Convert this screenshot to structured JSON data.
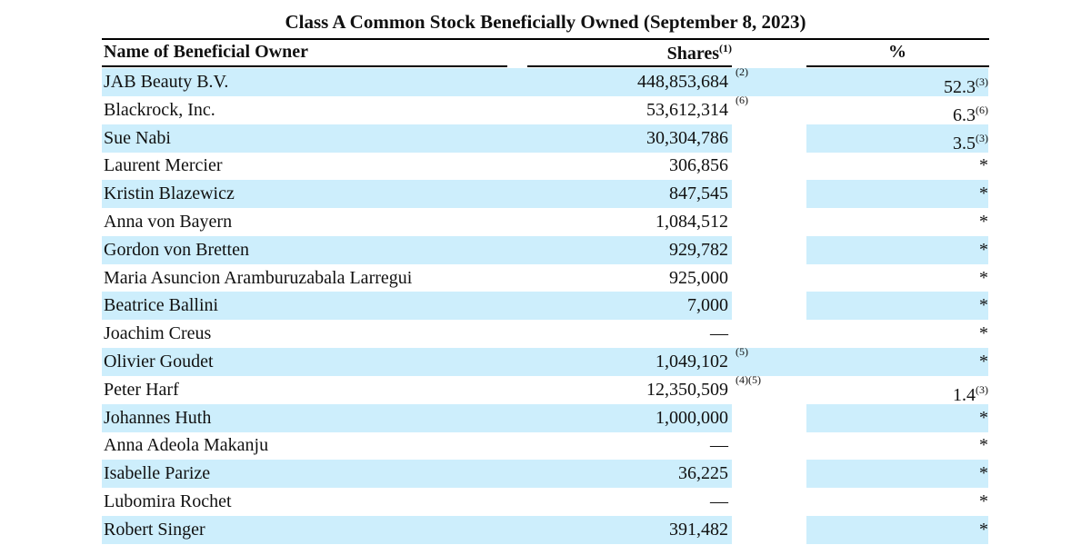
{
  "title": "Class A Common Stock Beneficially Owned (September 8, 2023)",
  "header": {
    "name": "Name of Beneficial Owner",
    "shares": "Shares",
    "shares_note": "(1)",
    "percent": "%"
  },
  "table": {
    "rows": [
      {
        "name": "JAB Beauty B.V.",
        "shares": "448,853,684",
        "shares_note": "(2)",
        "percent": "52.3",
        "percent_note": "(3)"
      },
      {
        "name": "Blackrock, Inc.",
        "shares": "53,612,314",
        "shares_note": "(6)",
        "percent": "6.3",
        "percent_note": "(6)"
      },
      {
        "name": "Sue Nabi",
        "shares": "30,304,786",
        "percent": "3.5",
        "percent_note": "(3)"
      },
      {
        "name": "Laurent Mercier",
        "shares": "306,856",
        "percent": "*"
      },
      {
        "name": "Kristin Blazewicz",
        "shares": "847,545",
        "percent": "*"
      },
      {
        "name": "Anna von Bayern",
        "shares": "1,084,512",
        "percent": "*"
      },
      {
        "name": "Gordon von Bretten",
        "shares": "929,782",
        "percent": "*"
      },
      {
        "name": "Maria Asuncion Aramburuzabala Larregui",
        "shares": "925,000",
        "percent": "*"
      },
      {
        "name": "Beatrice Ballini",
        "shares": "7,000",
        "percent": "*"
      },
      {
        "name": "Joachim Creus",
        "shares": "—",
        "percent": "*"
      },
      {
        "name": "Olivier Goudet",
        "shares": "1,049,102",
        "shares_note": "(5)",
        "percent": "*"
      },
      {
        "name": "Peter Harf",
        "shares": "12,350,509",
        "shares_note": "(4)(5)",
        "percent": "1.4",
        "percent_note": "(3)"
      },
      {
        "name": "Johannes Huth",
        "shares": "1,000,000",
        "percent": "*"
      },
      {
        "name": "Anna Adeola Makanju",
        "shares": "—",
        "percent": "*"
      },
      {
        "name": "Isabelle Parize",
        "shares": "36,225",
        "percent": "*"
      },
      {
        "name": "Lubomira Rochet",
        "shares": "—",
        "percent": "*"
      },
      {
        "name": "Robert Singer",
        "shares": "391,482",
        "percent": "*"
      }
    ]
  }
}
